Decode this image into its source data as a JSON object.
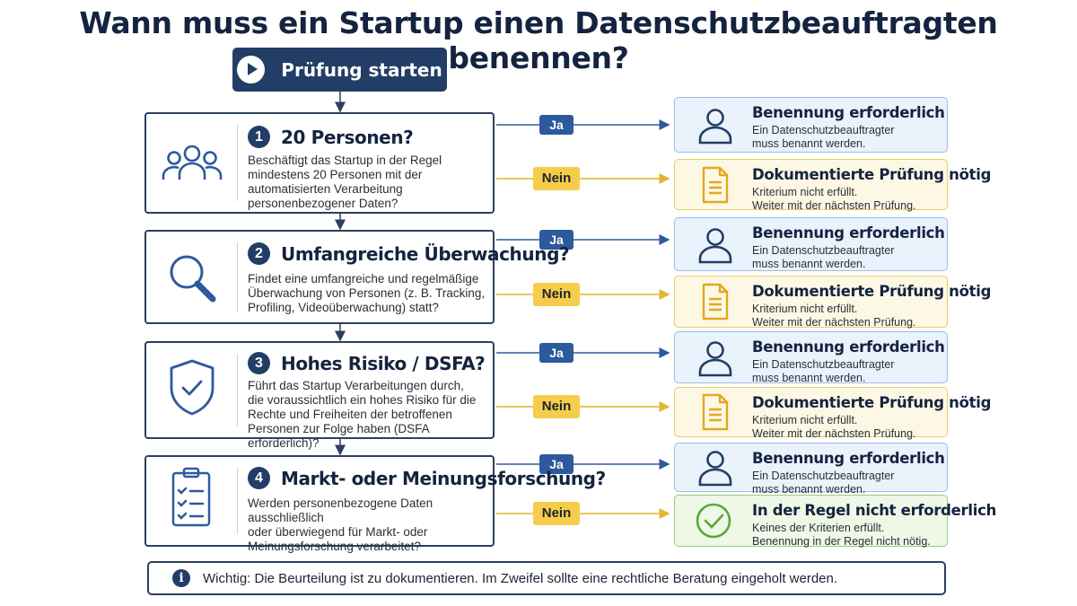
{
  "title": "Wann muss ein Startup einen Datenschutzbeauftragten benennen?",
  "start_label": "Prüfung starten",
  "yes_label": "Ja",
  "no_label": "Nein",
  "questions": [
    {
      "num": "1",
      "title": "20 Personen?",
      "icon": "people-icon",
      "lines": [
        "Beschäftigt das Startup in der Regel",
        "mindestens 20 Personen mit der",
        "automatisierten Verarbeitung",
        "personenbezogener Daten?"
      ]
    },
    {
      "num": "2",
      "title": "Umfangreiche Überwachung?",
      "icon": "magnifier-icon",
      "lines": [
        "Findet eine umfangreiche und regelmäßige",
        "Überwachung von Personen (z. B. Tracking,",
        "Profiling, Videoüberwachung) statt?"
      ]
    },
    {
      "num": "3",
      "title": "Hohes Risiko / DSFA?",
      "icon": "shield-check-icon",
      "lines": [
        "Führt das Startup Verarbeitungen durch,",
        "die voraussichtlich ein hohes Risiko für die",
        "Rechte und Freiheiten der betroffenen",
        "Personen zur Folge haben (DSFA erforderlich)?"
      ]
    },
    {
      "num": "4",
      "title": "Markt- oder Meinungsforschung?",
      "icon": "clipboard-checklist-icon",
      "lines": [
        "Werden personenbezogene Daten ausschließlich",
        "oder überwiegend für Markt- oder",
        "Meinungsforschung verarbeitet?"
      ]
    }
  ],
  "outcomes": {
    "required": {
      "title": "Benennung erforderlich",
      "lines": [
        "Ein Datenschutzbeauftragter",
        "muss benannt werden."
      ],
      "icon": "person-icon"
    },
    "documented": {
      "title": "Dokumentierte Prüfung nötig",
      "lines": [
        "Kriterium nicht erfüllt.",
        "Weiter mit der nächsten Prüfung."
      ],
      "icon": "document-icon"
    },
    "not_required": {
      "title": "In der Regel nicht erforderlich",
      "lines": [
        "Keines der Kriterien erfüllt.",
        "Benennung in der Regel nicht nötig."
      ],
      "icon": "check-circle-icon"
    }
  },
  "note": "Wichtig: Die Beurteilung ist zu dokumentieren. Im Zweifel sollte eine rechtliche Beratung eingeholt werden.",
  "colors": {
    "navy": "#233e66",
    "blue_line": "#2d5a9e",
    "yellow": "#f5cd4a",
    "green": "#5aa83a"
  }
}
